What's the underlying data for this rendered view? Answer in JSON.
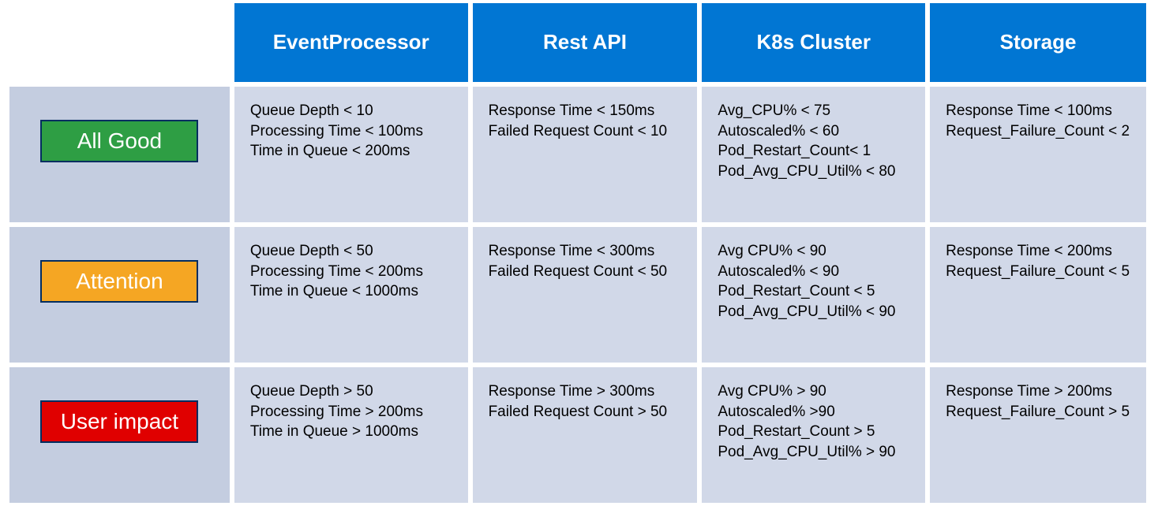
{
  "colors": {
    "header_bg": "#0176d3",
    "cell_bg_body": "#d1d8e8",
    "cell_bg_c0": "#c4cde0",
    "badge_border": "#032d60",
    "badges": {
      "all_good": "#2e9e44",
      "attention": "#f5a623",
      "user_impact": "#e00000"
    },
    "text_metric": "#000000",
    "text_header": "#ffffff"
  },
  "columns": [
    {
      "key": "event_processor",
      "label": "EventProcessor"
    },
    {
      "key": "rest_api",
      "label": "Rest API"
    },
    {
      "key": "k8s_cluster",
      "label": "K8s Cluster"
    },
    {
      "key": "storage",
      "label": "Storage"
    }
  ],
  "rows": [
    {
      "key": "all_good",
      "badge_label": "All Good",
      "badge_color_key": "all_good",
      "cells": {
        "event_processor": [
          "Queue Depth < 10",
          "Processing Time < 100ms",
          "Time in Queue < 200ms"
        ],
        "rest_api": [
          "Response Time < 150ms",
          "Failed Request Count < 10"
        ],
        "k8s_cluster": [
          "Avg_CPU% < 75",
          "Autoscaled% < 60",
          "Pod_Restart_Count< 1",
          "Pod_Avg_CPU_Util% < 80"
        ],
        "storage": [
          "Response Time < 100ms",
          "Request_Failure_Count < 2"
        ]
      }
    },
    {
      "key": "attention",
      "badge_label": "Attention",
      "badge_color_key": "attention",
      "cells": {
        "event_processor": [
          "Queue Depth < 50",
          "Processing Time < 200ms",
          "Time in Queue < 1000ms"
        ],
        "rest_api": [
          "Response Time < 300ms",
          "Failed Request Count < 50"
        ],
        "k8s_cluster": [
          "Avg CPU% < 90",
          "Autoscaled% < 90",
          "Pod_Restart_Count < 5",
          "Pod_Avg_CPU_Util% < 90"
        ],
        "storage": [
          "Response Time < 200ms",
          "Request_Failure_Count < 5"
        ]
      }
    },
    {
      "key": "user_impact",
      "badge_label": "User impact",
      "badge_color_key": "user_impact",
      "cells": {
        "event_processor": [
          "Queue Depth > 50",
          "Processing Time > 200ms",
          "Time in Queue > 1000ms"
        ],
        "rest_api": [
          "Response Time > 300ms",
          "Failed Request Count > 50"
        ],
        "k8s_cluster": [
          "Avg CPU% > 90",
          "Autoscaled% >90",
          "Pod_Restart_Count > 5",
          "Pod_Avg_CPU_Util% > 90"
        ],
        "storage": [
          "Response Time > 200ms",
          "Request_Failure_Count > 5"
        ]
      }
    }
  ]
}
